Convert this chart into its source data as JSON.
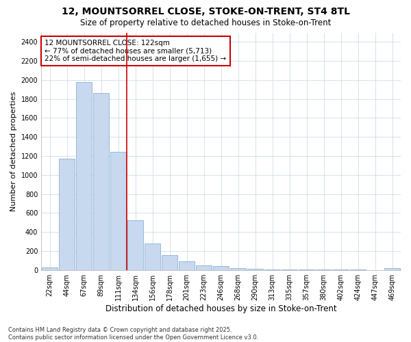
{
  "title": "12, MOUNTSORREL CLOSE, STOKE-ON-TRENT, ST4 8TL",
  "subtitle": "Size of property relative to detached houses in Stoke-on-Trent",
  "xlabel": "Distribution of detached houses by size in Stoke-on-Trent",
  "ylabel": "Number of detached properties",
  "categories": [
    "22sqm",
    "44sqm",
    "67sqm",
    "89sqm",
    "111sqm",
    "134sqm",
    "156sqm",
    "178sqm",
    "201sqm",
    "223sqm",
    "246sqm",
    "268sqm",
    "290sqm",
    "313sqm",
    "335sqm",
    "357sqm",
    "380sqm",
    "402sqm",
    "424sqm",
    "447sqm",
    "469sqm"
  ],
  "values": [
    25,
    1170,
    1980,
    1860,
    1240,
    520,
    280,
    155,
    90,
    45,
    42,
    20,
    12,
    5,
    4,
    3,
    2,
    2,
    2,
    1,
    18
  ],
  "bar_color": "#c8d8ee",
  "bar_edgecolor": "#8ab0d8",
  "vline_x": 4.5,
  "vline_color": "#cc0000",
  "annotation_text": "12 MOUNTSORREL CLOSE: 122sqm\n← 77% of detached houses are smaller (5,713)\n22% of semi-detached houses are larger (1,655) →",
  "annotation_box_facecolor": "#ffffff",
  "annotation_box_edgecolor": "#cc0000",
  "ylim": [
    0,
    2500
  ],
  "yticks": [
    0,
    200,
    400,
    600,
    800,
    1000,
    1200,
    1400,
    1600,
    1800,
    2000,
    2200,
    2400
  ],
  "grid_color": "#d0dce8",
  "bg_color": "#ffffff",
  "plot_bg_color": "#ffffff",
  "footnote": "Contains HM Land Registry data © Crown copyright and database right 2025.\nContains public sector information licensed under the Open Government Licence v3.0.",
  "title_fontsize": 10,
  "subtitle_fontsize": 8.5,
  "xlabel_fontsize": 8.5,
  "ylabel_fontsize": 8,
  "tick_fontsize": 7,
  "annot_fontsize": 7.5,
  "footnote_fontsize": 6
}
